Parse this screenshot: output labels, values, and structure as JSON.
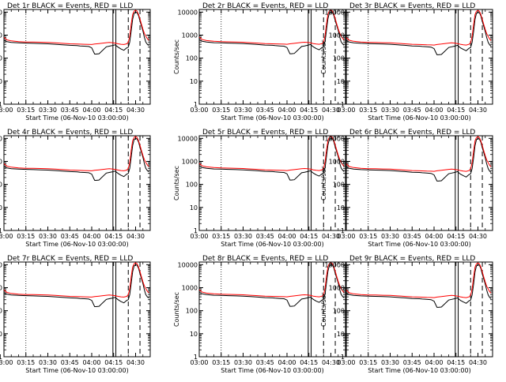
{
  "chart_data": [
    {
      "type": "line",
      "title": "Det 1r BLACK = Events, RED = LLD",
      "xlabel": "Start Time (06-Nov-10 03:00:00)",
      "ylabel": "Counts/sec"
    },
    {
      "type": "line",
      "title": "Det 2r BLACK = Events, RED = LLD",
      "xlabel": "Start Time (06-Nov-10 03:00:00)",
      "ylabel": "Counts/sec"
    },
    {
      "type": "line",
      "title": "Det 3r BLACK = Events, RED = LLD",
      "xlabel": "Start Time (06-Nov-10 03:00:00)",
      "ylabel": "Counts/sec"
    },
    {
      "type": "line",
      "title": "Det 4r BLACK = Events, RED = LLD",
      "xlabel": "Start Time (06-Nov-10 03:00:00)",
      "ylabel": "Counts/sec"
    },
    {
      "type": "line",
      "title": "Det 5r BLACK = Events, RED = LLD",
      "xlabel": "Start Time (06-Nov-10 03:00:00)",
      "ylabel": "Counts/sec"
    },
    {
      "type": "line",
      "title": "Det 6r BLACK = Events, RED = LLD",
      "xlabel": "Start Time (06-Nov-10 03:00:00)",
      "ylabel": "Counts/sec"
    },
    {
      "type": "line",
      "title": "Det 7r BLACK = Events, RED = LLD",
      "xlabel": "Start Time (06-Nov-10 03:00:00)",
      "ylabel": "Counts/sec"
    },
    {
      "type": "line",
      "title": "Det 8r BLACK = Events, RED = LLD",
      "xlabel": "Start Time (06-Nov-10 03:00:00)",
      "ylabel": "Counts/sec"
    },
    {
      "type": "line",
      "title": "Det 9r BLACK = Events, RED = LLD",
      "xlabel": "Start Time (06-Nov-10 03:00:00)",
      "ylabel": "Counts/sec"
    }
  ],
  "shared": {
    "x_ticks": [
      "03:00",
      "03:15",
      "03:30",
      "03:45",
      "04:00",
      "04:15",
      "04:30"
    ],
    "x_tick_minutes": [
      0,
      15,
      30,
      45,
      60,
      75,
      90
    ],
    "xlim_minutes": [
      0,
      100
    ],
    "ylim": [
      1,
      13000
    ],
    "y_scale": "log",
    "y_ticks": [
      1,
      10,
      100,
      1000,
      10000
    ],
    "y_tick_labels": [
      "1",
      "10",
      "100",
      "1000",
      "10000"
    ],
    "colors": {
      "events": "#000000",
      "lld": "#ff0000"
    },
    "dotted_line_minutes": [
      15
    ],
    "solid_line_minutes": [
      74.5,
      76.5
    ],
    "dashed_line_minutes": [
      85,
      93
    ],
    "series_events": [
      {
        "x": [
          0,
          2,
          5,
          10,
          15,
          20,
          25,
          30,
          35,
          40,
          45,
          50,
          52,
          55,
          58,
          60,
          62,
          63,
          65,
          70,
          72,
          74,
          76,
          78,
          80,
          82,
          83,
          84,
          85,
          86,
          87,
          88,
          89,
          90,
          91,
          92,
          93,
          94,
          95,
          96,
          97,
          98,
          99
        ],
        "y": [
          600,
          520,
          480,
          460,
          450,
          440,
          430,
          420,
          400,
          380,
          360,
          350,
          340,
          330,
          320,
          280,
          150,
          150,
          155,
          310,
          330,
          350,
          380,
          300,
          250,
          220,
          250,
          280,
          300,
          500,
          1500,
          5000,
          9000,
          10000,
          9500,
          7000,
          4000,
          2500,
          1500,
          800,
          500,
          400,
          350
        ]
      },
      {
        "x": [
          0,
          2,
          5,
          10,
          15,
          20,
          25,
          30,
          35,
          40,
          45,
          50,
          52,
          55,
          58,
          60,
          62,
          63,
          65,
          70,
          72,
          74,
          76,
          78,
          80,
          82,
          83,
          84,
          85,
          86,
          87,
          88,
          89,
          90,
          91,
          92,
          93,
          94,
          95,
          96,
          97,
          98,
          99
        ],
        "y": [
          620,
          540,
          500,
          470,
          460,
          450,
          440,
          430,
          410,
          390,
          370,
          360,
          350,
          340,
          330,
          290,
          155,
          155,
          160,
          320,
          340,
          360,
          390,
          310,
          260,
          230,
          260,
          290,
          310,
          520,
          1600,
          5200,
          9200,
          10000,
          9600,
          7200,
          4100,
          2600,
          1600,
          850,
          520,
          420,
          360
        ]
      },
      {
        "x": [
          0,
          2,
          5,
          10,
          15,
          20,
          25,
          30,
          35,
          40,
          45,
          50,
          52,
          55,
          58,
          60,
          62,
          63,
          65,
          70,
          72,
          74,
          76,
          78,
          80,
          82,
          83,
          84,
          85,
          86,
          87,
          88,
          89,
          90,
          91,
          92,
          93,
          94,
          95,
          96,
          97,
          98,
          99
        ],
        "y": [
          580,
          500,
          460,
          440,
          430,
          420,
          410,
          400,
          380,
          360,
          340,
          330,
          320,
          310,
          300,
          260,
          140,
          140,
          145,
          290,
          310,
          330,
          360,
          280,
          240,
          210,
          240,
          270,
          290,
          480,
          1400,
          4800,
          8800,
          10000,
          9300,
          6800,
          3900,
          2400,
          1400,
          780,
          480,
          380,
          330
        ]
      }
    ],
    "series_lld": [
      {
        "x": [
          0,
          2,
          5,
          10,
          15,
          20,
          25,
          30,
          35,
          40,
          45,
          50,
          55,
          58,
          60,
          62,
          65,
          70,
          72,
          74,
          76,
          78,
          80,
          82,
          84,
          85,
          86,
          87,
          88,
          89,
          90,
          91,
          92,
          93,
          94,
          95,
          96,
          97,
          98,
          99
        ],
        "y": [
          800,
          620,
          560,
          520,
          500,
          500,
          490,
          480,
          460,
          440,
          420,
          410,
          400,
          395,
          390,
          410,
          430,
          470,
          480,
          470,
          450,
          420,
          400,
          390,
          420,
          500,
          900,
          3000,
          8000,
          11000,
          12000,
          11000,
          8000,
          5000,
          3000,
          1800,
          1200,
          900,
          700,
          600
        ]
      },
      {
        "x": [
          0,
          2,
          5,
          10,
          15,
          20,
          25,
          30,
          35,
          40,
          45,
          50,
          55,
          58,
          60,
          62,
          65,
          70,
          72,
          74,
          76,
          78,
          80,
          82,
          84,
          85,
          86,
          87,
          88,
          89,
          90,
          91,
          92,
          93,
          94,
          95,
          96,
          97,
          98,
          99
        ],
        "y": [
          820,
          640,
          580,
          540,
          520,
          510,
          500,
          490,
          470,
          450,
          430,
          420,
          410,
          405,
          400,
          420,
          440,
          480,
          490,
          480,
          460,
          430,
          410,
          400,
          430,
          510,
          920,
          3100,
          8200,
          11200,
          12200,
          11200,
          8200,
          5100,
          3100,
          1850,
          1250,
          920,
          720,
          620
        ]
      },
      {
        "x": [
          0,
          2,
          5,
          10,
          15,
          20,
          25,
          30,
          35,
          40,
          45,
          50,
          55,
          58,
          60,
          62,
          65,
          70,
          72,
          74,
          76,
          78,
          80,
          82,
          84,
          85,
          86,
          87,
          88,
          89,
          90,
          91,
          92,
          93,
          94,
          95,
          96,
          97,
          98,
          99
        ],
        "y": [
          780,
          600,
          540,
          500,
          480,
          480,
          470,
          460,
          440,
          420,
          400,
          390,
          380,
          375,
          370,
          390,
          410,
          450,
          460,
          450,
          430,
          400,
          380,
          370,
          400,
          480,
          860,
          2900,
          7800,
          10800,
          11800,
          10800,
          7800,
          4900,
          2900,
          1750,
          1150,
          880,
          680,
          580
        ]
      }
    ]
  }
}
